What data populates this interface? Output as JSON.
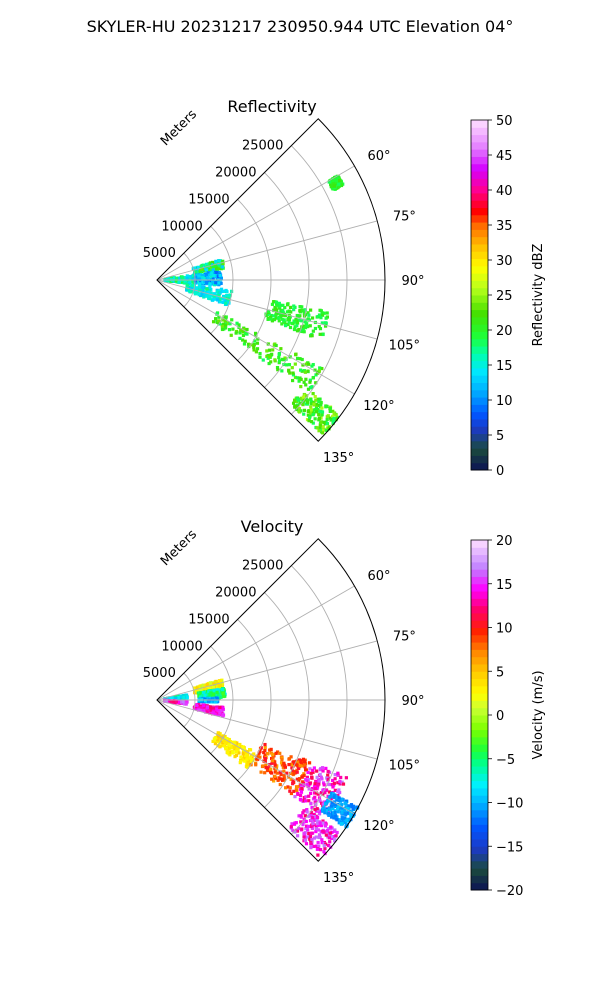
{
  "figure": {
    "suptitle": "SKYLER-HU  20231217  230950.944 UTC Elevation 04°"
  },
  "chart_data": [
    {
      "type": "heatmap",
      "subtype": "polar-sector (radar PPI)",
      "title": "Reflectivity",
      "radial_axis_label": "Meters",
      "radial_ticks": [
        5000,
        10000,
        15000,
        20000,
        25000
      ],
      "radial_tick_labels": [
        "5000",
        "10000",
        "15000",
        "20000",
        "25000"
      ],
      "radial_range": [
        0,
        30000
      ],
      "azimuth_ticks": [
        60,
        75,
        90,
        105,
        120,
        135
      ],
      "azimuth_tick_labels": [
        "60°",
        "75°",
        "90°",
        "105°",
        "120°",
        "135°"
      ],
      "azimuth_range": [
        45,
        135
      ],
      "grid": true,
      "colorbar": {
        "label": "Reflectivity dBZ",
        "range": [
          0,
          50
        ],
        "ticks": [
          0,
          5,
          10,
          15,
          20,
          25,
          30,
          35,
          40,
          45,
          50
        ],
        "tick_labels": [
          "0",
          "5",
          "10",
          "15",
          "20",
          "25",
          "30",
          "35",
          "40",
          "45",
          "50"
        ],
        "cmap": "pyart_HomeyerRainbow"
      },
      "echo_regions": [
        {
          "az": [
            82,
            96
          ],
          "r": [
            1000,
            5000
          ],
          "value": [
            12,
            20
          ]
        },
        {
          "az": [
            72,
            80
          ],
          "r": [
            5000,
            9000
          ],
          "value": [
            12,
            24
          ]
        },
        {
          "az": [
            82,
            95
          ],
          "r": [
            5000,
            8500
          ],
          "value": [
            8,
            16
          ]
        },
        {
          "az": [
            98,
            110
          ],
          "r": [
            4000,
            10000
          ],
          "value": [
            12,
            18
          ]
        },
        {
          "az": [
            118,
            127
          ],
          "r": [
            9000,
            25000
          ],
          "value": [
            18,
            24
          ]
        },
        {
          "az": [
            126,
            133
          ],
          "r": [
            24000,
            30000
          ],
          "value": [
            18,
            26
          ]
        },
        {
          "az": [
            60,
            63
          ],
          "r": [
            26000,
            27500
          ],
          "value": [
            18,
            22
          ]
        },
        {
          "az": [
            100,
            110
          ],
          "r": [
            15000,
            23000
          ],
          "value": [
            18,
            22
          ]
        }
      ]
    },
    {
      "type": "heatmap",
      "subtype": "polar-sector (radar PPI)",
      "title": "Velocity",
      "radial_axis_label": "Meters",
      "radial_ticks": [
        5000,
        10000,
        15000,
        20000,
        25000
      ],
      "radial_tick_labels": [
        "5000",
        "10000",
        "15000",
        "20000",
        "25000"
      ],
      "radial_range": [
        0,
        30000
      ],
      "azimuth_ticks": [
        60,
        75,
        90,
        105,
        120,
        135
      ],
      "azimuth_tick_labels": [
        "60°",
        "75°",
        "90°",
        "105°",
        "120°",
        "135°"
      ],
      "azimuth_range": [
        45,
        135
      ],
      "grid": true,
      "colorbar": {
        "label": "Velocity (m/s)",
        "range": [
          -20,
          20
        ],
        "ticks": [
          -20,
          -15,
          -10,
          -5,
          0,
          5,
          10,
          15,
          20
        ],
        "tick_labels": [
          "−20",
          "−15",
          "−10",
          "−5",
          "0",
          "5",
          "10",
          "15",
          "20"
        ],
        "cmap": "pyart_BuDRd18"
      },
      "echo_regions": [
        {
          "az": [
            80,
            86
          ],
          "r": [
            1000,
            4000
          ],
          "value": [
            -10,
            -4
          ]
        },
        {
          "az": [
            92,
            98
          ],
          "r": [
            1000,
            4000
          ],
          "value": [
            12,
            17
          ]
        },
        {
          "az": [
            72,
            80
          ],
          "r": [
            5000,
            9000
          ],
          "value": [
            0,
            5
          ]
        },
        {
          "az": [
            80,
            88
          ],
          "r": [
            5500,
            9000
          ],
          "value": [
            -8,
            -3
          ]
        },
        {
          "az": [
            88,
            92
          ],
          "r": [
            5500,
            8000
          ],
          "value": [
            -12,
            -8
          ]
        },
        {
          "az": [
            96,
            104
          ],
          "r": [
            5000,
            9000
          ],
          "value": [
            12,
            16
          ]
        },
        {
          "az": [
            118,
            127
          ],
          "r": [
            9000,
            15000
          ],
          "value": [
            2,
            5
          ]
        },
        {
          "az": [
            112,
            125
          ],
          "r": [
            15000,
            22000
          ],
          "value": [
            6,
            11
          ]
        },
        {
          "az": [
            112,
            125
          ],
          "r": [
            22000,
            27000
          ],
          "value": [
            11,
            17
          ]
        },
        {
          "az": [
            118,
            124
          ],
          "r": [
            26000,
            30000
          ],
          "value": [
            -12,
            -9
          ]
        },
        {
          "az": [
            126,
            134
          ],
          "r": [
            24000,
            30000
          ],
          "value": [
            12,
            17
          ]
        }
      ]
    }
  ],
  "colors": {
    "grid": "#b0b0b0",
    "frame": "#000000",
    "background": "#ffffff"
  }
}
